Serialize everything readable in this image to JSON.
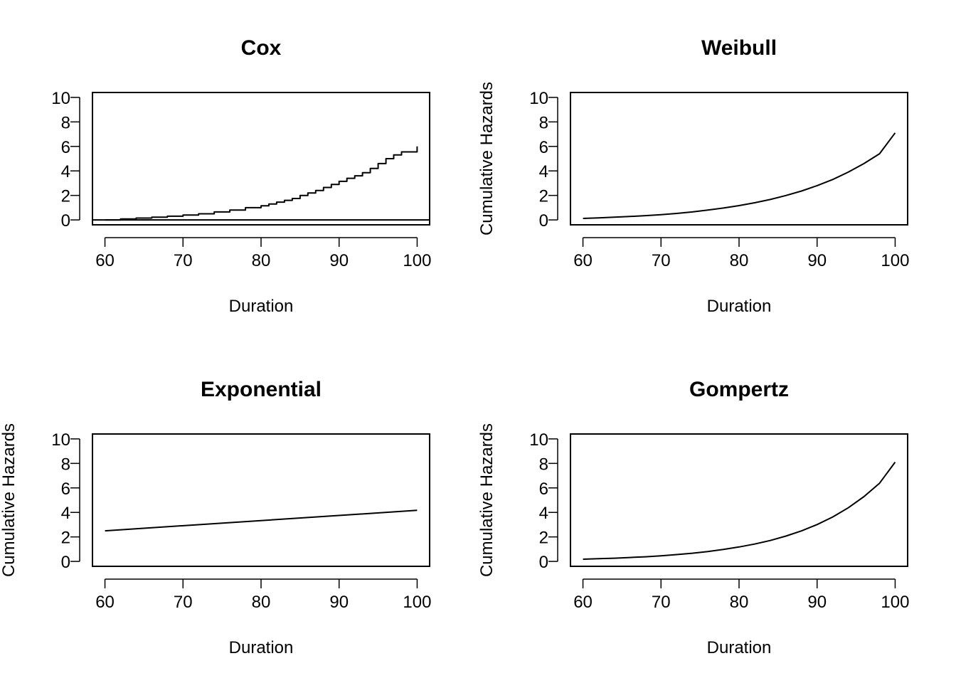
{
  "chart_data": [
    {
      "type": "line",
      "title": "Cox",
      "xlabel": "Duration",
      "ylabel": "",
      "xlim": [
        58.4,
        101.6
      ],
      "ylim": [
        -0.4,
        10.4
      ],
      "xticks": [
        60,
        70,
        80,
        90,
        100
      ],
      "yticks": [
        0,
        2,
        4,
        6,
        8,
        10
      ],
      "grid": false,
      "step": true,
      "series": [
        {
          "x": [
            60,
            62,
            64,
            66,
            68,
            70,
            72,
            74,
            76,
            78,
            80,
            81,
            82,
            83,
            84,
            85,
            86,
            87,
            88,
            89,
            90,
            91,
            92,
            93,
            94,
            95,
            96,
            97,
            98,
            99,
            100,
            100
          ],
          "y": [
            0.0,
            0.08,
            0.15,
            0.22,
            0.3,
            0.4,
            0.5,
            0.65,
            0.8,
            1.0,
            1.15,
            1.3,
            1.45,
            1.6,
            1.75,
            2.0,
            2.2,
            2.4,
            2.65,
            2.9,
            3.15,
            3.4,
            3.6,
            3.85,
            4.2,
            4.6,
            5.0,
            5.3,
            5.55,
            5.55,
            5.55,
            6.0
          ]
        },
        {
          "x": [
            58.4,
            101.6
          ],
          "y": [
            0,
            0
          ]
        }
      ]
    },
    {
      "type": "line",
      "title": "Weibull",
      "xlabel": "Duration",
      "ylabel": "Cumulative Hazards",
      "xlim": [
        58.4,
        101.6
      ],
      "ylim": [
        -0.4,
        10.4
      ],
      "xticks": [
        60,
        70,
        80,
        90,
        100
      ],
      "yticks": [
        0,
        2,
        4,
        6,
        8,
        10
      ],
      "grid": false,
      "series": [
        {
          "x": [
            60,
            62,
            64,
            66,
            68,
            70,
            72,
            74,
            76,
            78,
            80,
            82,
            84,
            86,
            88,
            90,
            92,
            94,
            96,
            98,
            100
          ],
          "y": [
            0.12,
            0.17,
            0.22,
            0.28,
            0.35,
            0.43,
            0.53,
            0.65,
            0.8,
            0.97,
            1.17,
            1.4,
            1.67,
            1.99,
            2.36,
            2.8,
            3.3,
            3.9,
            4.6,
            5.4,
            7.1
          ]
        }
      ]
    },
    {
      "type": "line",
      "title": "Exponential",
      "xlabel": "Duration",
      "ylabel": "Cumulative Hazards",
      "xlim": [
        58.4,
        101.6
      ],
      "ylim": [
        -0.4,
        10.4
      ],
      "xticks": [
        60,
        70,
        80,
        90,
        100
      ],
      "yticks": [
        0,
        2,
        4,
        6,
        8,
        10
      ],
      "grid": false,
      "series": [
        {
          "x": [
            60,
            100
          ],
          "y": [
            2.5,
            4.17
          ]
        }
      ]
    },
    {
      "type": "line",
      "title": "Gompertz",
      "xlabel": "Duration",
      "ylabel": "Cumulative Hazards",
      "xlim": [
        58.4,
        101.6
      ],
      "ylim": [
        -0.4,
        10.4
      ],
      "xticks": [
        60,
        70,
        80,
        90,
        100
      ],
      "yticks": [
        0,
        2,
        4,
        6,
        8,
        10
      ],
      "grid": false,
      "series": [
        {
          "x": [
            60,
            62,
            64,
            66,
            68,
            70,
            72,
            74,
            76,
            78,
            80,
            82,
            84,
            86,
            88,
            90,
            92,
            94,
            96,
            98,
            100
          ],
          "y": [
            0.18,
            0.22,
            0.26,
            0.32,
            0.38,
            0.46,
            0.56,
            0.67,
            0.81,
            0.98,
            1.18,
            1.42,
            1.71,
            2.07,
            2.49,
            3.01,
            3.63,
            4.38,
            5.29,
            6.38,
            8.1
          ]
        }
      ]
    }
  ]
}
